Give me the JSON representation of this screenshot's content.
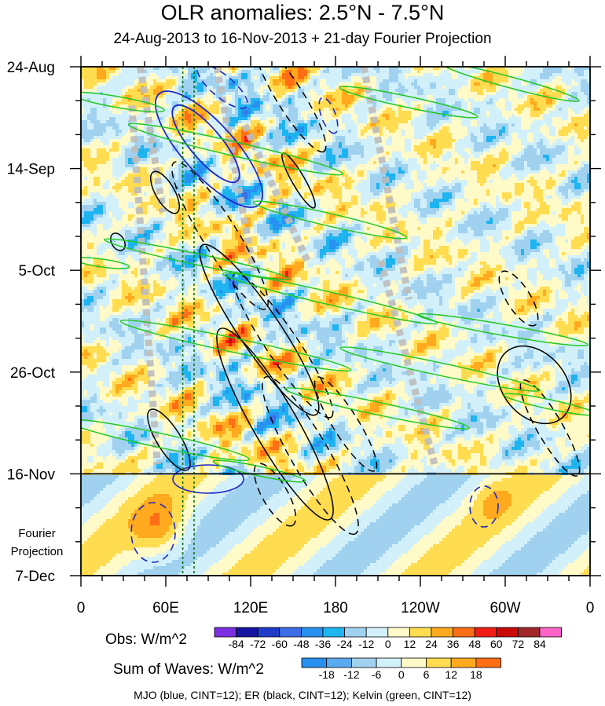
{
  "chart_data": {
    "type": "heatmap",
    "title": "OLR anomalies: 2.5°N - 7.5°N",
    "subtitle": "24-Aug-2013 to 16-Nov-2013 + 21-day Fourier Projection",
    "x_ticks": [
      "0",
      "60E",
      "120E",
      "180",
      "120W",
      "60W",
      "0"
    ],
    "y_ticks": [
      "24-Aug",
      "14-Sep",
      "5-Oct",
      "26-Oct",
      "16-Nov",
      "7-Dec"
    ],
    "projection_label": [
      "Fourier",
      "Projection"
    ],
    "xlim_deg_east": [
      0,
      360
    ],
    "ylim_days_since_start": [
      0,
      105
    ],
    "observed_end_day": 84,
    "reference_lines_deg_east": [
      72,
      80
    ],
    "obs_colorbar": {
      "label": "Obs: W/m^2",
      "levels": [
        -84,
        -72,
        -60,
        -48,
        -36,
        -24,
        -12,
        0,
        12,
        24,
        36,
        48,
        60,
        72,
        84
      ],
      "colors": [
        "#7b2fe0",
        "#1414a0",
        "#1e3cc8",
        "#3c6ee6",
        "#2891f0",
        "#1eb4f0",
        "#a0d2f0",
        "#d2f0fa",
        "#fffac8",
        "#ffdc50",
        "#ffaa1e",
        "#ff6e14",
        "#f01e14",
        "#c80a0a",
        "#a02828",
        "#ff64c8"
      ]
    },
    "waves_colorbar": {
      "label": "Sum of Waves: W/m^2",
      "levels": [
        -18,
        -12,
        -6,
        0,
        6,
        12,
        18
      ],
      "colors": [
        "#2891f0",
        "#5aaaf0",
        "#a0d2f0",
        "#d2f0fa",
        "#fffac8",
        "#ffdc50",
        "#ffaa1e",
        "#ff6e14"
      ]
    },
    "contours": [
      {
        "wave": "MJO",
        "color": "blue",
        "cint": 12
      },
      {
        "wave": "ER",
        "color": "black",
        "cint": 12
      },
      {
        "wave": "Kelvin",
        "color": "green",
        "cint": 12
      }
    ],
    "footer": "MJO (blue, CINT=12); ER (black, CINT=12); Kelvin (green, CINT=12)"
  }
}
